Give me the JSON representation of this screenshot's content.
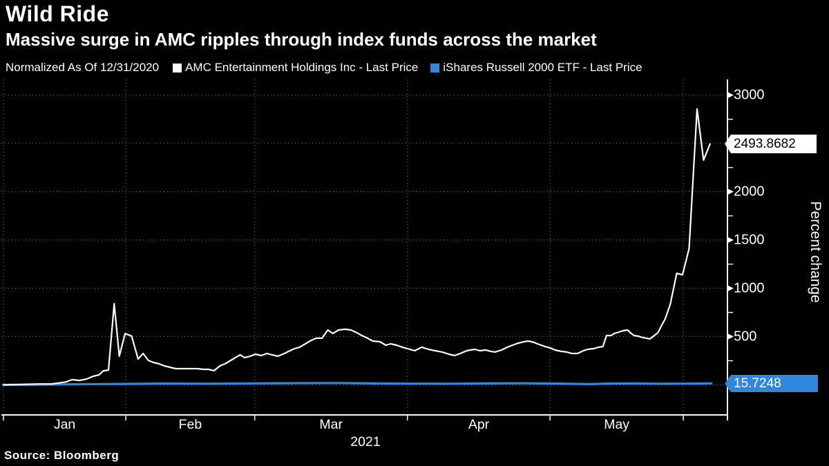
{
  "header": {
    "title": "Wild Ride",
    "subtitle": "Massive surge in AMC ripples through index funds across the market"
  },
  "legend": {
    "note": "Normalized As Of 12/31/2020",
    "series": [
      {
        "label": "AMC Entertainment Holdings Inc - Last Price",
        "color": "#ffffff"
      },
      {
        "label": "iShares Russell 2000 ETF - Last Price",
        "color": "#3087db"
      }
    ]
  },
  "chart_data": {
    "type": "line",
    "title": "Wild Ride",
    "xlabel": "",
    "ylabel": "Percent change",
    "grid": true,
    "legend_position": "top",
    "x_axis": {
      "months": [
        "Jan",
        "Feb",
        "Mar",
        "Apr",
        "May"
      ],
      "year": "2021",
      "boundaries_frac": [
        0,
        0.169,
        0.347,
        0.558,
        0.755,
        0.939,
        1.0
      ]
    },
    "y_axis": {
      "ylim": [
        -311,
        3163
      ],
      "major_ticks": [
        3000,
        2500,
        2000,
        1500,
        1000,
        500
      ],
      "minor_ticks": [
        2750,
        2250,
        1750,
        1250,
        750,
        250
      ],
      "zero_line": 0
    },
    "series": [
      {
        "name": "AMC Entertainment Holdings Inc - Last Price",
        "color": "#ffffff",
        "width": 2.2,
        "last_value": 2493.8682,
        "last_label": "2493.8682",
        "x_frac": [
          0.0,
          0.024,
          0.048,
          0.067,
          0.086,
          0.095,
          0.105,
          0.115,
          0.124,
          0.132,
          0.138,
          0.145,
          0.153,
          0.16,
          0.168,
          0.177,
          0.186,
          0.193,
          0.2,
          0.207,
          0.215,
          0.222,
          0.23,
          0.238,
          0.245,
          0.253,
          0.26,
          0.268,
          0.276,
          0.283,
          0.291,
          0.299,
          0.306,
          0.314,
          0.322,
          0.327,
          0.333,
          0.341,
          0.348,
          0.356,
          0.364,
          0.371,
          0.379,
          0.386,
          0.394,
          0.402,
          0.409,
          0.417,
          0.425,
          0.432,
          0.44,
          0.448,
          0.455,
          0.463,
          0.472,
          0.48,
          0.488,
          0.495,
          0.503,
          0.51,
          0.52,
          0.528,
          0.535,
          0.543,
          0.551,
          0.558,
          0.568,
          0.578,
          0.587,
          0.596,
          0.606,
          0.615,
          0.623,
          0.631,
          0.64,
          0.651,
          0.658,
          0.666,
          0.673,
          0.679,
          0.688,
          0.696,
          0.703,
          0.711,
          0.719,
          0.725,
          0.733,
          0.74,
          0.748,
          0.755,
          0.762,
          0.77,
          0.778,
          0.785,
          0.793,
          0.801,
          0.807,
          0.815,
          0.822,
          0.828,
          0.833,
          0.839,
          0.844,
          0.85,
          0.856,
          0.862,
          0.867,
          0.871,
          0.877,
          0.883,
          0.888,
          0.893,
          0.899,
          0.904,
          0.908,
          0.914,
          0.921,
          0.93,
          0.938,
          0.947,
          0.958,
          0.967,
          0.976
        ],
        "values": [
          0,
          4,
          9,
          10,
          30,
          54,
          46,
          61,
          89,
          103,
          146,
          153,
          840,
          297,
          532,
          505,
          268,
          325,
          254,
          232,
          218,
          197,
          182,
          168,
          168,
          168,
          168,
          168,
          161,
          161,
          147,
          197,
          218,
          254,
          290,
          311,
          282,
          297,
          318,
          304,
          325,
          311,
          297,
          318,
          347,
          375,
          390,
          425,
          461,
          483,
          483,
          568,
          533,
          568,
          576,
          568,
          540,
          511,
          483,
          454,
          447,
          411,
          425,
          411,
          390,
          375,
          354,
          390,
          368,
          354,
          340,
          318,
          304,
          325,
          354,
          368,
          354,
          361,
          347,
          340,
          361,
          390,
          411,
          432,
          447,
          454,
          439,
          418,
          397,
          383,
          361,
          347,
          340,
          325,
          325,
          354,
          368,
          375,
          390,
          397,
          511,
          511,
          533,
          547,
          561,
          568,
          533,
          511,
          504,
          490,
          483,
          476,
          511,
          540,
          600,
          683,
          833,
          1155,
          1140,
          1412,
          2856,
          2327,
          2493.8682
        ]
      },
      {
        "name": "iShares Russell 2000 ETF - Last Price",
        "color": "#3087db",
        "width": 3.2,
        "last_value": 15.7248,
        "last_label": "15.7248",
        "x_frac": [
          0.0,
          0.052,
          0.11,
          0.169,
          0.224,
          0.282,
          0.347,
          0.406,
          0.463,
          0.51,
          0.558,
          0.615,
          0.663,
          0.711,
          0.755,
          0.787,
          0.811,
          0.84,
          0.873,
          0.902,
          0.939,
          0.959,
          0.978
        ],
        "values": [
          0,
          3,
          7,
          10,
          14,
          12,
          16,
          18,
          19,
          15,
          13,
          12,
          15,
          17,
          14,
          11,
          8,
          14,
          16,
          12,
          13,
          14,
          15.7248
        ]
      }
    ],
    "callouts": [
      {
        "text": "2493.8682",
        "bg": "#ffffff",
        "fg": "#000000"
      },
      {
        "text": "15.7248",
        "bg": "#3087db",
        "fg": "#ffffff"
      }
    ]
  },
  "footer": {
    "source": "Source: Bloomberg"
  }
}
